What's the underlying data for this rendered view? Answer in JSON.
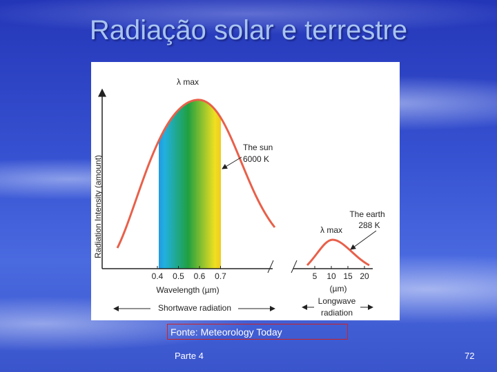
{
  "slide": {
    "title": "Radiação solar e terrestre",
    "source": "Fonte: Meteorology Today",
    "footer": "Parte 4",
    "page_number": "72"
  },
  "figure": {
    "y_axis_label": "Radiation Intensity (amount)",
    "sun_peak_label": "λ max",
    "sun_label": [
      "The sun",
      "6000 K"
    ],
    "earth_peak_label": "λ max",
    "earth_label": [
      "The earth",
      "288 K"
    ],
    "shortwave_ticks": [
      "0.4",
      "0.5",
      "0.6",
      "0.7"
    ],
    "shortwave_axis_label": "Wavelength (µm)",
    "shortwave_band": "Shortwave radiation",
    "longwave_ticks": [
      "5",
      "10",
      "15",
      "20"
    ],
    "longwave_unit": "(µm)",
    "longwave_band": [
      "Longwave",
      "radiation"
    ]
  }
}
